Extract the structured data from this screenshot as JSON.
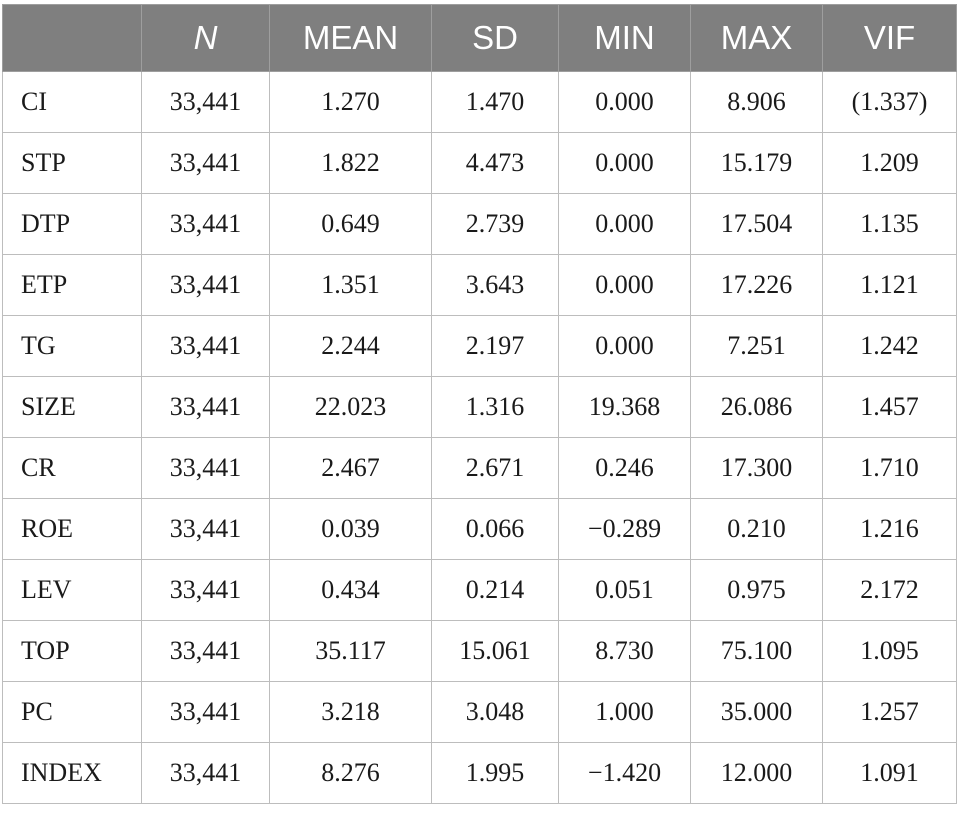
{
  "table": {
    "headers": [
      "",
      "N",
      "MEAN",
      "SD",
      "MIN",
      "MAX",
      "VIF"
    ],
    "rows": [
      [
        "CI",
        "33,441",
        "1.270",
        "1.470",
        "0.000",
        "8.906",
        "(1.337)"
      ],
      [
        "STP",
        "33,441",
        "1.822",
        "4.473",
        "0.000",
        "15.179",
        "1.209"
      ],
      [
        "DTP",
        "33,441",
        "0.649",
        "2.739",
        "0.000",
        "17.504",
        "1.135"
      ],
      [
        "ETP",
        "33,441",
        "1.351",
        "3.643",
        "0.000",
        "17.226",
        "1.121"
      ],
      [
        "TG",
        "33,441",
        "2.244",
        "2.197",
        "0.000",
        "7.251",
        "1.242"
      ],
      [
        "SIZE",
        "33,441",
        "22.023",
        "1.316",
        "19.368",
        "26.086",
        "1.457"
      ],
      [
        "CR",
        "33,441",
        "2.467",
        "2.671",
        "0.246",
        "17.300",
        "1.710"
      ],
      [
        "ROE",
        "33,441",
        "0.039",
        "0.066",
        "−0.289",
        "0.210",
        "1.216"
      ],
      [
        "LEV",
        "33,441",
        "0.434",
        "0.214",
        "0.051",
        "0.975",
        "2.172"
      ],
      [
        "TOP",
        "33,441",
        "35.117",
        "15.061",
        "8.730",
        "75.100",
        "1.095"
      ],
      [
        "PC",
        "33,441",
        "3.218",
        "3.048",
        "1.000",
        "35.000",
        "1.257"
      ],
      [
        "INDEX",
        "33,441",
        "8.276",
        "1.995",
        "−1.420",
        "12.000",
        "1.091"
      ]
    ]
  },
  "colors": {
    "header_bg": "#7f7f7f",
    "header_text": "#ffffff",
    "grid": "#bdbdbd"
  }
}
